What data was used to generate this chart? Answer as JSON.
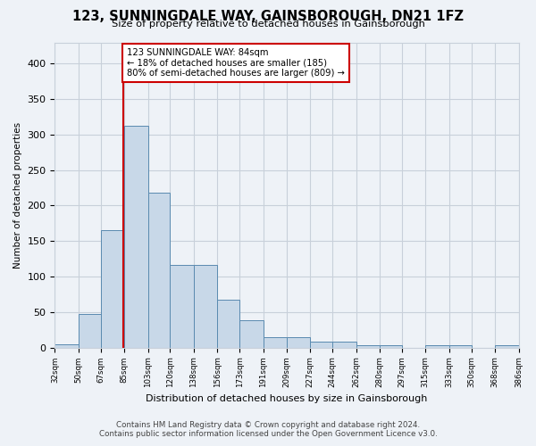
{
  "title": "123, SUNNINGDALE WAY, GAINSBOROUGH, DN21 1FZ",
  "subtitle": "Size of property relative to detached houses in Gainsborough",
  "xlabel": "Distribution of detached houses by size in Gainsborough",
  "ylabel": "Number of detached properties",
  "footer_line1": "Contains HM Land Registry data © Crown copyright and database right 2024.",
  "footer_line2": "Contains public sector information licensed under the Open Government Licence v3.0.",
  "annotation_line1": "123 SUNNINGDALE WAY: 84sqm",
  "annotation_line2": "← 18% of detached houses are smaller (185)",
  "annotation_line3": "80% of semi-detached houses are larger (809) →",
  "subject_value": 84,
  "bar_edges": [
    32,
    50,
    67,
    85,
    103,
    120,
    138,
    156,
    173,
    191,
    209,
    227,
    244,
    262,
    280,
    297,
    315,
    333,
    350,
    368,
    386
  ],
  "bar_heights": [
    4,
    47,
    165,
    312,
    218,
    116,
    116,
    67,
    39,
    15,
    15,
    8,
    8,
    3,
    3,
    0,
    3,
    3,
    0,
    3
  ],
  "bar_color": "#c8d8e8",
  "bar_edge_color": "#5a8ab0",
  "vline_color": "#cc0000",
  "vline_x": 84,
  "annotation_box_color": "#cc0000",
  "grid_color": "#c8d0da",
  "background_color": "#eef2f7",
  "ylim": [
    0,
    430
  ],
  "yticks": [
    0,
    50,
    100,
    150,
    200,
    250,
    300,
    350,
    400
  ]
}
